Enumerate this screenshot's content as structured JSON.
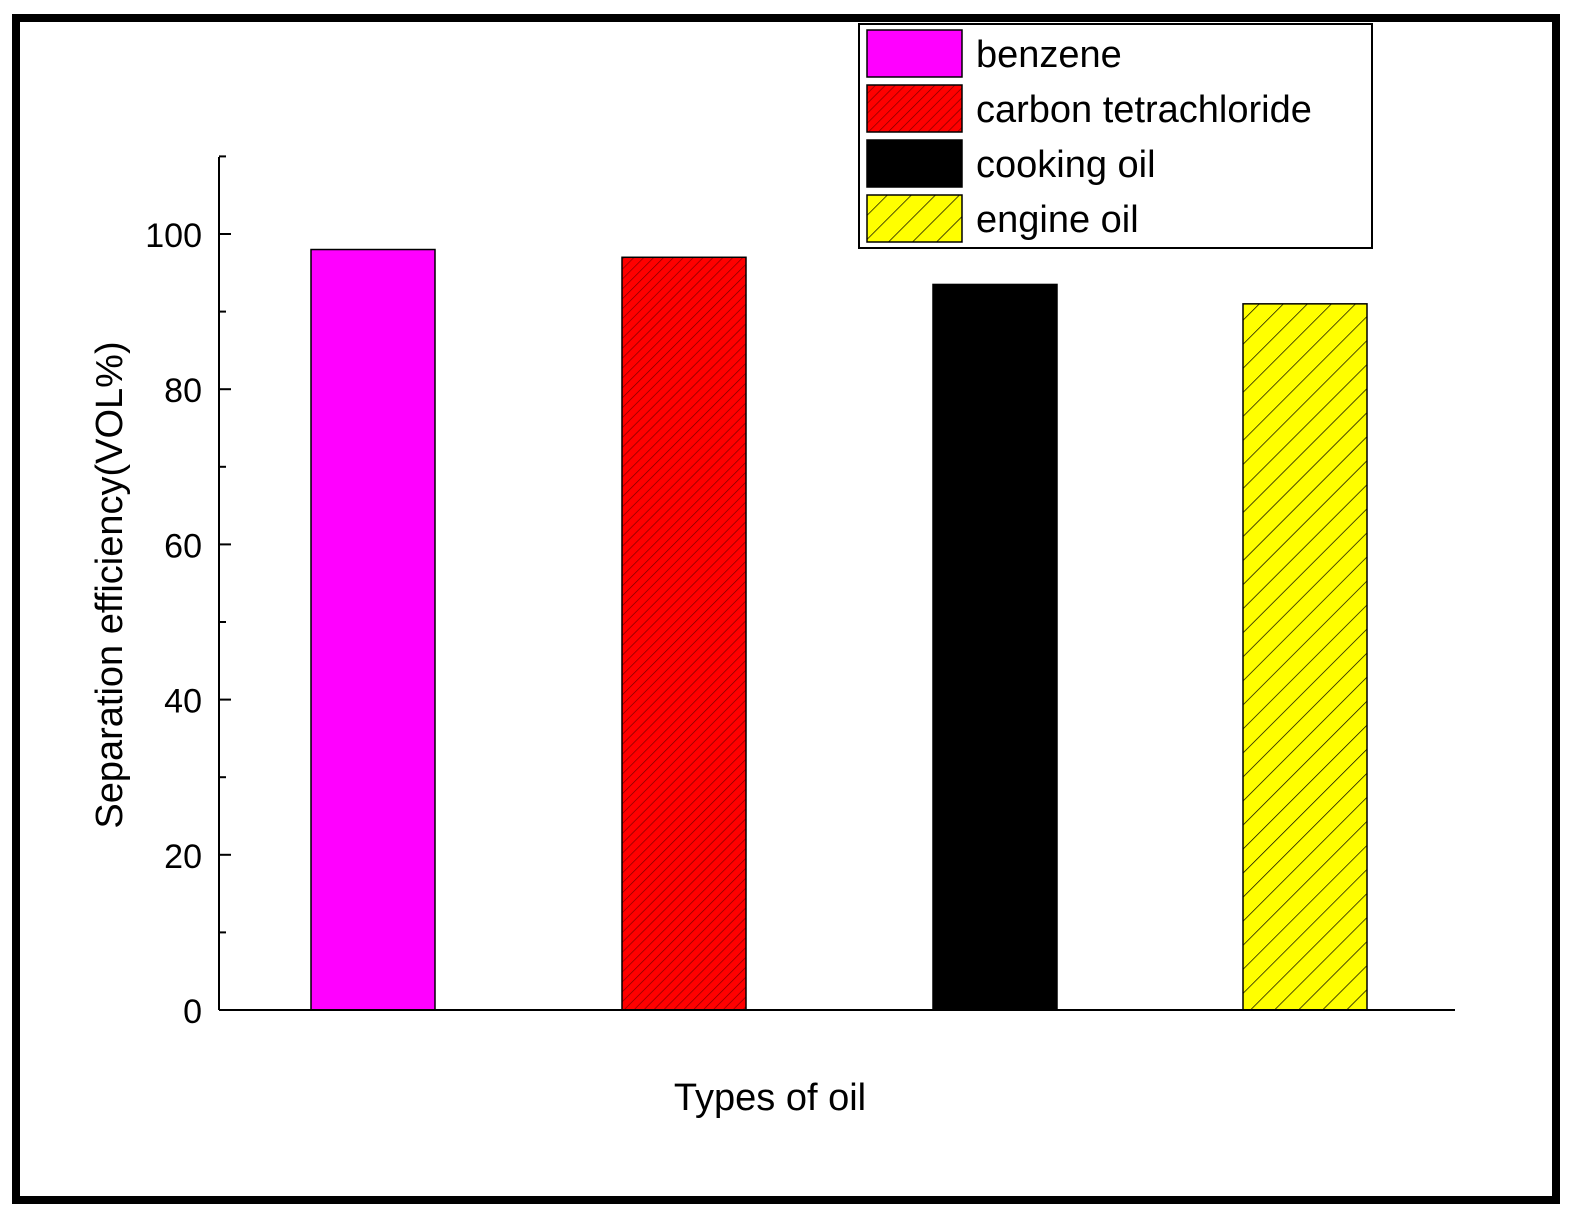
{
  "chart_data": {
    "type": "bar",
    "title": "",
    "xlabel": "Types of oil",
    "ylabel": "Separation efficiency(VOL%)",
    "ylim": [
      0,
      110
    ],
    "yticks_major": [
      0,
      20,
      40,
      60,
      80,
      100
    ],
    "yticks_minor": [
      10,
      30,
      50,
      70,
      90,
      110
    ],
    "legend_position": "top-right",
    "series": [
      {
        "name": "benzene",
        "value": 98,
        "color": "#ff00ff",
        "pattern": "solid"
      },
      {
        "name": "carbon tetrachloride",
        "value": 97,
        "color": "#ff0000",
        "pattern": "dense-hatch"
      },
      {
        "name": "cooking oil",
        "value": 93.5,
        "color": "#000000",
        "pattern": "solid"
      },
      {
        "name": "engine oil",
        "value": 91,
        "color": "#ffff00",
        "pattern": "sparse-hatch"
      }
    ]
  }
}
